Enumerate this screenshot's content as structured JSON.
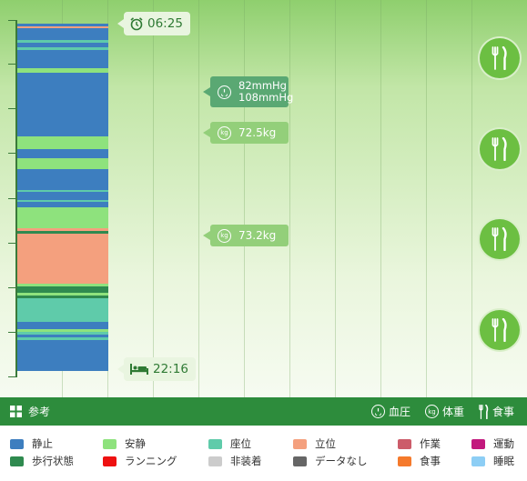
{
  "timeline": {
    "start_time": "06:25",
    "end_time": "22:16",
    "segments": [
      {
        "kind": "static",
        "color": "#3d7ebf",
        "start": 0.0,
        "end": 0.008
      },
      {
        "kind": "standing",
        "color": "#f4a07e",
        "start": 0.008,
        "end": 0.012
      },
      {
        "kind": "static",
        "color": "#3d7ebf",
        "start": 0.012,
        "end": 0.048
      },
      {
        "kind": "sitting",
        "color": "#5fcbaa",
        "start": 0.048,
        "end": 0.056
      },
      {
        "kind": "static",
        "color": "#3d7ebf",
        "start": 0.056,
        "end": 0.068
      },
      {
        "kind": "sitting",
        "color": "#5fcbaa",
        "start": 0.068,
        "end": 0.076
      },
      {
        "kind": "static",
        "color": "#3d7ebf",
        "start": 0.076,
        "end": 0.128
      },
      {
        "kind": "resting",
        "color": "#8ee27d",
        "start": 0.128,
        "end": 0.142
      },
      {
        "kind": "static",
        "color": "#3d7ebf",
        "start": 0.142,
        "end": 0.325
      },
      {
        "kind": "resting",
        "color": "#8ee27d",
        "start": 0.325,
        "end": 0.362
      },
      {
        "kind": "static",
        "color": "#3d7ebf",
        "start": 0.362,
        "end": 0.388
      },
      {
        "kind": "resting",
        "color": "#8ee27d",
        "start": 0.388,
        "end": 0.418
      },
      {
        "kind": "static",
        "color": "#3d7ebf",
        "start": 0.418,
        "end": 0.478
      },
      {
        "kind": "sitting",
        "color": "#5fcbaa",
        "start": 0.478,
        "end": 0.485
      },
      {
        "kind": "static",
        "color": "#3d7ebf",
        "start": 0.485,
        "end": 0.508
      },
      {
        "kind": "sitting",
        "color": "#5fcbaa",
        "start": 0.508,
        "end": 0.514
      },
      {
        "kind": "static",
        "color": "#3d7ebf",
        "start": 0.514,
        "end": 0.528
      },
      {
        "kind": "resting",
        "color": "#8ee27d",
        "start": 0.528,
        "end": 0.588
      },
      {
        "kind": "standing",
        "color": "#f4a07e",
        "start": 0.588,
        "end": 0.596
      },
      {
        "kind": "walking",
        "color": "#2f8a4f",
        "start": 0.596,
        "end": 0.604
      },
      {
        "kind": "standing",
        "color": "#f4a07e",
        "start": 0.604,
        "end": 0.748
      },
      {
        "kind": "resting",
        "color": "#8ee27d",
        "start": 0.748,
        "end": 0.756
      },
      {
        "kind": "walking",
        "color": "#2f8a4f",
        "start": 0.756,
        "end": 0.776
      },
      {
        "kind": "resting",
        "color": "#8ee27d",
        "start": 0.776,
        "end": 0.782
      },
      {
        "kind": "walking",
        "color": "#2f8a4f",
        "start": 0.782,
        "end": 0.79
      },
      {
        "kind": "sitting",
        "color": "#5fcbaa",
        "start": 0.79,
        "end": 0.858
      },
      {
        "kind": "static",
        "color": "#3d7ebf",
        "start": 0.858,
        "end": 0.88
      },
      {
        "kind": "resting",
        "color": "#8ee27d",
        "start": 0.88,
        "end": 0.888
      },
      {
        "kind": "sitting",
        "color": "#5fcbaa",
        "start": 0.888,
        "end": 0.896
      },
      {
        "kind": "static",
        "color": "#3d7ebf",
        "start": 0.896,
        "end": 0.904
      },
      {
        "kind": "sitting",
        "color": "#5fcbaa",
        "start": 0.904,
        "end": 0.912
      },
      {
        "kind": "static",
        "color": "#3d7ebf",
        "start": 0.912,
        "end": 1.0
      }
    ]
  },
  "vitals": {
    "blood_pressure": {
      "low": "82mmHg",
      "high": "108mmHg",
      "icon": "gauge-icon"
    },
    "weights": [
      {
        "value": "72.5kg",
        "icon": "kg-icon"
      },
      {
        "value": "73.2kg",
        "icon": "kg-icon"
      }
    ]
  },
  "meals": [
    {
      "icon": "fork-knife-icon"
    },
    {
      "icon": "fork-knife-icon"
    },
    {
      "icon": "fork-knife-icon"
    },
    {
      "icon": "fork-knife-icon"
    }
  ],
  "reference_bar": {
    "label": "参考",
    "items": [
      {
        "label": "血圧",
        "icon": "gauge-icon"
      },
      {
        "label": "体重",
        "icon": "kg-icon",
        "icon_text": "kg"
      },
      {
        "label": "食事",
        "icon": "fork-knife-icon"
      }
    ]
  },
  "legend": [
    {
      "label": "静止",
      "color": "#3d7ebf"
    },
    {
      "label": "安静",
      "color": "#8ee27d"
    },
    {
      "label": "座位",
      "color": "#5fcbaa"
    },
    {
      "label": "立位",
      "color": "#f4a07e"
    },
    {
      "label": "作業",
      "color": "#cc5c6a"
    },
    {
      "label": "運動",
      "color": "#c2197d"
    },
    {
      "label": "歩行状態",
      "color": "#2f8a4f"
    },
    {
      "label": "ランニング",
      "color": "#ee1111"
    },
    {
      "label": "非装着",
      "color": "#cccccc"
    },
    {
      "label": "データなし",
      "color": "#666666"
    },
    {
      "label": "食事",
      "color": "#f57a2c"
    },
    {
      "label": "睡眠",
      "color": "#8dcef5"
    }
  ]
}
